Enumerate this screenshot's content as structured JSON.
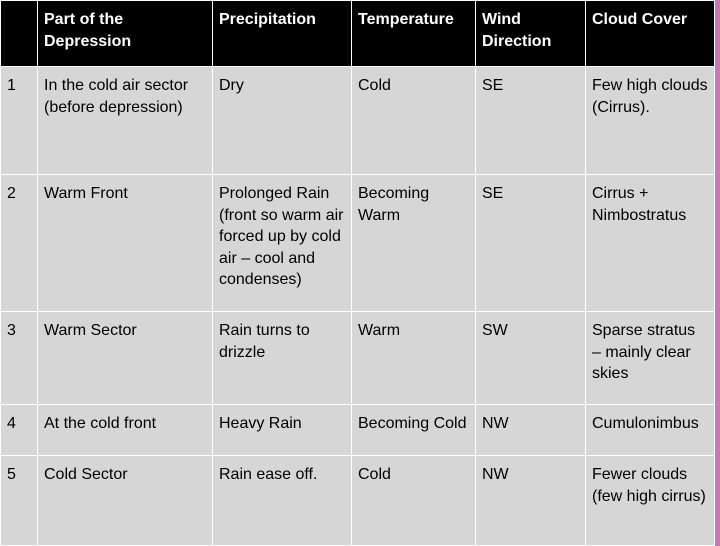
{
  "colors": {
    "header_bg": "#000000",
    "header_text": "#ffffff",
    "cell_bg": "#d6d6d6",
    "page_bg": "#c878b4"
  },
  "table": {
    "headers": [
      "",
      "Part of the Depression",
      "Precipitation",
      "Temperature",
      "Wind Direction",
      "Cloud Cover"
    ],
    "rows": [
      [
        "1",
        "In the cold air sector (before depression)",
        "Dry",
        "Cold",
        "SE",
        "Few high clouds (Cirrus)."
      ],
      [
        "2",
        "Warm Front",
        "Prolonged Rain (front so warm air forced up by cold air – cool and condenses)",
        "Becoming Warm",
        "SE",
        "Cirrus + Nimbostratus"
      ],
      [
        "3",
        "Warm Sector",
        "Rain turns to drizzle",
        "Warm",
        "SW",
        "Sparse stratus – mainly clear skies"
      ],
      [
        "4",
        "At the cold front",
        "Heavy Rain",
        "Becoming Cold",
        "NW",
        "Cumulonimbus"
      ],
      [
        "5",
        "Cold Sector",
        "Rain ease off.",
        "Cold",
        "NW",
        "Fewer clouds (few high cirrus)"
      ]
    ]
  }
}
